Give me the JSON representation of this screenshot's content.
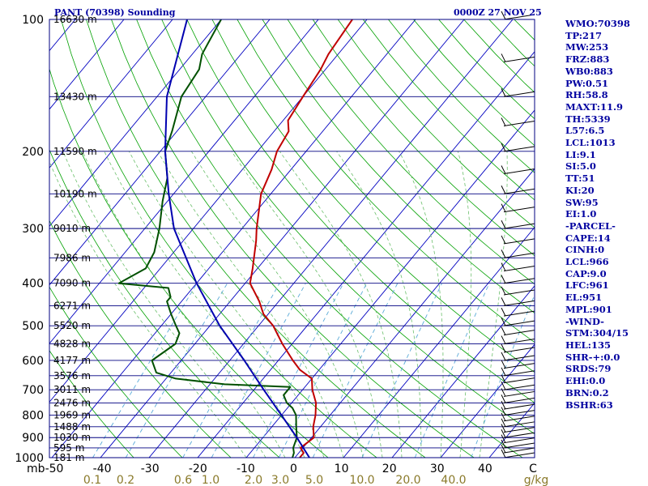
{
  "chart_data": {
    "type": "line",
    "title": "PANT (70398) Sounding",
    "time": "0000Z 27 NOV 25",
    "x_unit": "mb",
    "x_ticks": [
      "-50",
      "-40",
      "-30",
      "-20",
      "-10",
      "0",
      "10",
      "20",
      "30",
      "40",
      "C"
    ],
    "mixing_ratio_labels": [
      "0.1",
      "0.2",
      "0.6",
      "1.0",
      "2.0",
      "3.0",
      "5.0",
      "10.0",
      "20.0",
      "40.0",
      "g/kg"
    ],
    "pressure_levels": [
      100,
      200,
      300,
      400,
      500,
      600,
      700,
      800,
      900,
      1000
    ],
    "height_labels": [
      {
        "p": 100,
        "text": "16630 m"
      },
      {
        "p": 150,
        "text": "13430 m"
      },
      {
        "p": 200,
        "text": "11590 m"
      },
      {
        "p": 250,
        "text": "10190 m"
      },
      {
        "p": 300,
        "text": "9010 m"
      },
      {
        "p": 350,
        "text": "7986 m"
      },
      {
        "p": 400,
        "text": "7090 m"
      },
      {
        "p": 450,
        "text": "6271 m"
      },
      {
        "p": 500,
        "text": "5520 m"
      },
      {
        "p": 550,
        "text": "4828 m"
      },
      {
        "p": 600,
        "text": "4177 m"
      },
      {
        "p": 650,
        "text": "3576 m"
      },
      {
        "p": 700,
        "text": "3011 m"
      },
      {
        "p": 750,
        "text": "2476 m"
      },
      {
        "p": 800,
        "text": "1969 m"
      },
      {
        "p": 850,
        "text": "1488 m"
      },
      {
        "p": 900,
        "text": "1030 m"
      },
      {
        "p": 950,
        "text": "595 m"
      },
      {
        "p": 1000,
        "text": "181 m"
      }
    ],
    "series": [
      {
        "name": "Temperature",
        "color": "#c00000",
        "points": [
          [
            1000,
            1
          ],
          [
            975,
            1
          ],
          [
            950,
            -0.5
          ],
          [
            900,
            0.5
          ],
          [
            850,
            -1.5
          ],
          [
            800,
            -3
          ],
          [
            750,
            -5
          ],
          [
            700,
            -8
          ],
          [
            660,
            -10
          ],
          [
            630,
            -14
          ],
          [
            600,
            -17
          ],
          [
            550,
            -22
          ],
          [
            500,
            -27
          ],
          [
            470,
            -31
          ],
          [
            440,
            -34
          ],
          [
            400,
            -39
          ],
          [
            370,
            -41
          ],
          [
            320,
            -45
          ],
          [
            300,
            -47
          ],
          [
            250,
            -52
          ],
          [
            220,
            -54
          ],
          [
            200,
            -56
          ],
          [
            180,
            -57
          ],
          [
            170,
            -59
          ],
          [
            150,
            -60
          ],
          [
            130,
            -61
          ],
          [
            120,
            -62
          ],
          [
            100,
            -63
          ]
        ]
      },
      {
        "name": "Dewpoint",
        "color": "#005000",
        "points": [
          [
            1000,
            -0.5
          ],
          [
            975,
            -1
          ],
          [
            950,
            -2
          ],
          [
            900,
            -3
          ],
          [
            850,
            -5
          ],
          [
            800,
            -7
          ],
          [
            770,
            -9
          ],
          [
            750,
            -11
          ],
          [
            720,
            -13
          ],
          [
            700,
            -13
          ],
          [
            690,
            -13
          ],
          [
            680,
            -27
          ],
          [
            660,
            -38
          ],
          [
            640,
            -43
          ],
          [
            600,
            -46
          ],
          [
            550,
            -44
          ],
          [
            520,
            -45
          ],
          [
            500,
            -47
          ],
          [
            470,
            -50
          ],
          [
            440,
            -53
          ],
          [
            430,
            -53
          ],
          [
            410,
            -55
          ],
          [
            400,
            -66
          ],
          [
            370,
            -63
          ],
          [
            340,
            -64
          ],
          [
            300,
            -67
          ],
          [
            260,
            -71
          ],
          [
            230,
            -74
          ],
          [
            200,
            -79
          ],
          [
            180,
            -81
          ],
          [
            150,
            -85
          ],
          [
            130,
            -86
          ],
          [
            120,
            -88
          ],
          [
            100,
            -90
          ]
        ]
      },
      {
        "name": "Parcel",
        "color": "#0000b0",
        "points": [
          [
            1000,
            3
          ],
          [
            900,
            -3
          ],
          [
            800,
            -10
          ],
          [
            700,
            -18
          ],
          [
            600,
            -27
          ],
          [
            500,
            -38
          ],
          [
            400,
            -50
          ],
          [
            300,
            -64
          ],
          [
            250,
            -71
          ],
          [
            200,
            -79
          ],
          [
            150,
            -88
          ],
          [
            100,
            -97
          ]
        ]
      }
    ]
  },
  "indices": [
    "WMO:70398",
    "TP:217",
    "MW:253",
    "FRZ:883",
    "WB0:883",
    "PW:0.51",
    "RH:58.8",
    "MAXT:11.9",
    "TH:5339",
    "L57:6.5",
    "LCL:1013",
    "LI:9.1",
    "SI:5.0",
    "TT:51",
    "KI:20",
    "SW:95",
    "EI:1.0",
    "-PARCEL-",
    "CAPE:14",
    "CINH:0",
    "LCL:966",
    "CAP:9.0",
    "LFC:961",
    "EL:951",
    "MPL:901",
    "-WIND-",
    "STM:304/15",
    "HEL:135",
    "SHR-+:0.0",
    "SRDS:79",
    "EHI:0.0",
    "BRN:0.2",
    "BSHR:63"
  ],
  "colors": {
    "isobar": "#000080",
    "isotherm": "#0000c0",
    "dry_adiabat": "#00a000",
    "moist_adiabat": "#6bbf6b",
    "mixing_ratio": "#5aaad8",
    "frame": "#000080"
  }
}
